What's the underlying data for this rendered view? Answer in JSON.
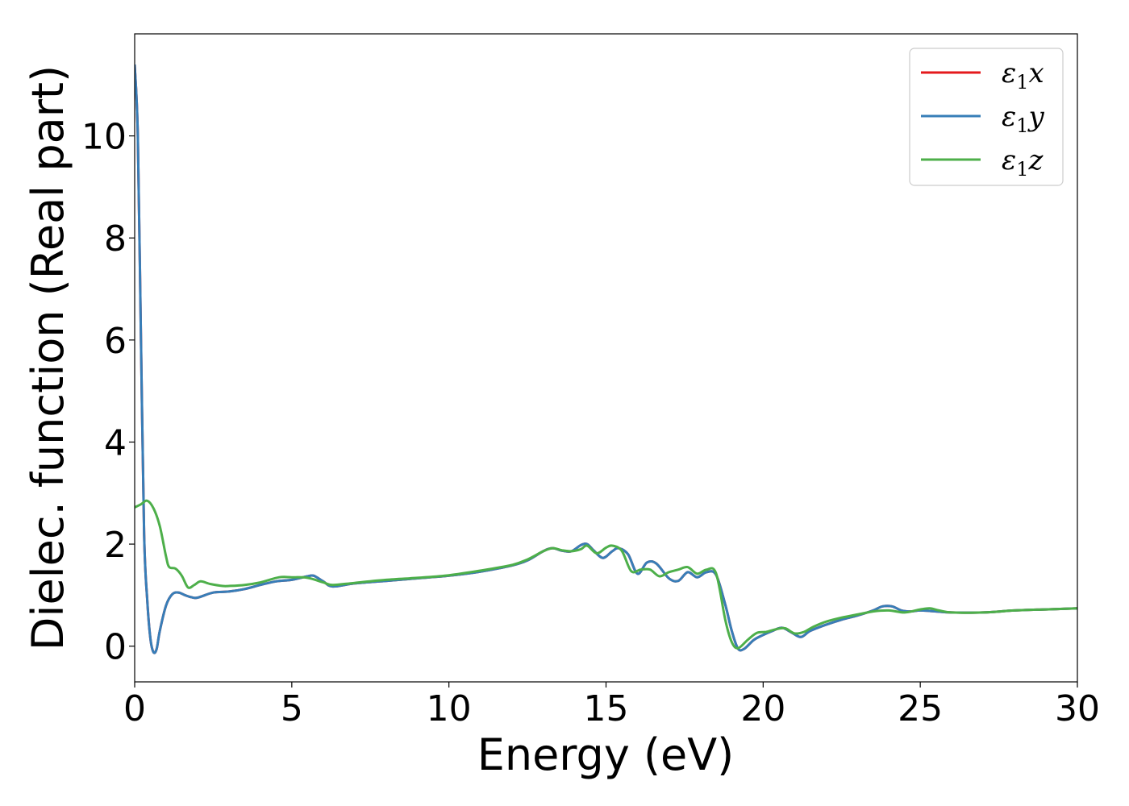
{
  "chart_data": {
    "type": "line",
    "title": "",
    "xlabel": "Energy (eV)",
    "ylabel": "Dielec. function (Real part)",
    "xlim": [
      0,
      30
    ],
    "ylim": [
      -0.7,
      12.0
    ],
    "xticks": [
      0,
      5,
      10,
      15,
      20,
      25,
      30
    ],
    "yticks": [
      0,
      2,
      4,
      6,
      8,
      10
    ],
    "grid": false,
    "legend_position": "top-right",
    "series": [
      {
        "name": "ε₁x",
        "legend_main": "ε",
        "legend_sub": "1",
        "legend_suffix": "x",
        "color": "#e41a1c",
        "x": [
          0,
          0.1,
          0.2,
          0.3,
          0.4,
          0.5,
          0.6,
          0.7,
          0.8,
          1.0,
          1.2,
          1.4,
          1.6,
          1.8,
          2.0,
          2.5,
          3.0,
          3.5,
          4.0,
          4.5,
          5.0,
          5.5,
          5.7,
          6.0,
          6.3,
          7.0,
          8.0,
          9.0,
          10.0,
          11.0,
          12.0,
          12.5,
          13.0,
          13.3,
          13.6,
          13.9,
          14.2,
          14.4,
          14.6,
          14.9,
          15.2,
          15.4,
          15.7,
          16.0,
          16.3,
          16.6,
          17.0,
          17.3,
          17.6,
          17.9,
          18.2,
          18.5,
          18.8,
          19.0,
          19.2,
          19.4,
          19.7,
          20.0,
          20.3,
          20.6,
          20.9,
          21.2,
          21.5,
          22.0,
          22.5,
          23.0,
          23.5,
          23.8,
          24.1,
          24.4,
          24.7,
          25.0,
          25.5,
          26.0,
          27.0,
          28.0,
          29.0,
          30.0
        ],
        "y": [
          11.4,
          10.0,
          6.0,
          2.2,
          0.9,
          0.15,
          -0.12,
          -0.05,
          0.3,
          0.8,
          1.02,
          1.05,
          1.0,
          0.96,
          0.95,
          1.05,
          1.07,
          1.12,
          1.2,
          1.27,
          1.3,
          1.37,
          1.38,
          1.27,
          1.17,
          1.23,
          1.28,
          1.33,
          1.38,
          1.46,
          1.58,
          1.68,
          1.86,
          1.92,
          1.87,
          1.86,
          1.98,
          2.0,
          1.88,
          1.73,
          1.86,
          1.92,
          1.8,
          1.42,
          1.64,
          1.62,
          1.33,
          1.28,
          1.45,
          1.35,
          1.45,
          1.4,
          0.8,
          0.3,
          -0.05,
          -0.05,
          0.12,
          0.22,
          0.3,
          0.36,
          0.27,
          0.18,
          0.3,
          0.42,
          0.52,
          0.6,
          0.7,
          0.78,
          0.78,
          0.7,
          0.68,
          0.7,
          0.68,
          0.66,
          0.66,
          0.7,
          0.72,
          0.74
        ]
      },
      {
        "name": "ε₁y",
        "legend_main": "ε",
        "legend_sub": "1",
        "legend_suffix": "y",
        "color": "#377eb8",
        "x": [
          0,
          0.1,
          0.2,
          0.3,
          0.4,
          0.5,
          0.6,
          0.7,
          0.8,
          1.0,
          1.2,
          1.4,
          1.6,
          1.8,
          2.0,
          2.5,
          3.0,
          3.5,
          4.0,
          4.5,
          5.0,
          5.5,
          5.7,
          6.0,
          6.3,
          7.0,
          8.0,
          9.0,
          10.0,
          11.0,
          12.0,
          12.5,
          13.0,
          13.3,
          13.6,
          13.9,
          14.2,
          14.4,
          14.6,
          14.9,
          15.2,
          15.4,
          15.7,
          16.0,
          16.3,
          16.6,
          17.0,
          17.3,
          17.6,
          17.9,
          18.2,
          18.5,
          18.8,
          19.0,
          19.2,
          19.4,
          19.7,
          20.0,
          20.3,
          20.6,
          20.9,
          21.2,
          21.5,
          22.0,
          22.5,
          23.0,
          23.5,
          23.8,
          24.1,
          24.4,
          24.7,
          25.0,
          25.5,
          26.0,
          27.0,
          28.0,
          29.0,
          30.0
        ],
        "y": [
          11.4,
          10.0,
          6.0,
          2.2,
          0.9,
          0.15,
          -0.12,
          -0.05,
          0.3,
          0.8,
          1.02,
          1.05,
          1.0,
          0.96,
          0.95,
          1.05,
          1.07,
          1.12,
          1.2,
          1.27,
          1.3,
          1.37,
          1.38,
          1.27,
          1.17,
          1.23,
          1.28,
          1.33,
          1.38,
          1.46,
          1.58,
          1.68,
          1.86,
          1.92,
          1.87,
          1.86,
          1.98,
          2.0,
          1.88,
          1.73,
          1.86,
          1.92,
          1.8,
          1.42,
          1.64,
          1.62,
          1.33,
          1.28,
          1.45,
          1.35,
          1.45,
          1.4,
          0.8,
          0.3,
          -0.05,
          -0.05,
          0.12,
          0.22,
          0.3,
          0.36,
          0.27,
          0.18,
          0.3,
          0.42,
          0.52,
          0.6,
          0.7,
          0.78,
          0.78,
          0.7,
          0.68,
          0.7,
          0.68,
          0.66,
          0.66,
          0.7,
          0.72,
          0.74
        ]
      },
      {
        "name": "ε₁z",
        "legend_main": "ε",
        "legend_sub": "1",
        "legend_suffix": "z",
        "color": "#4daf4a",
        "x": [
          0,
          0.2,
          0.4,
          0.6,
          0.8,
          1.0,
          1.1,
          1.3,
          1.5,
          1.7,
          1.9,
          2.1,
          2.4,
          2.8,
          3.0,
          3.5,
          4.0,
          4.6,
          5.0,
          5.5,
          6.0,
          6.3,
          7.0,
          8.0,
          9.0,
          10.0,
          11.0,
          12.0,
          12.5,
          13.0,
          13.3,
          13.6,
          13.9,
          14.2,
          14.4,
          14.7,
          15.0,
          15.2,
          15.5,
          15.8,
          16.1,
          16.4,
          16.7,
          17.0,
          17.3,
          17.6,
          17.9,
          18.2,
          18.5,
          18.8,
          19.0,
          19.2,
          19.5,
          19.8,
          20.1,
          20.4,
          20.7,
          21.0,
          21.3,
          21.6,
          22.0,
          22.5,
          23.0,
          23.5,
          24.0,
          24.5,
          25.0,
          25.3,
          25.6,
          26.0,
          27.0,
          28.0,
          29.0,
          30.0
        ],
        "y": [
          2.72,
          2.78,
          2.85,
          2.7,
          2.35,
          1.75,
          1.55,
          1.52,
          1.38,
          1.15,
          1.2,
          1.27,
          1.22,
          1.18,
          1.18,
          1.2,
          1.25,
          1.35,
          1.35,
          1.34,
          1.25,
          1.2,
          1.24,
          1.3,
          1.34,
          1.39,
          1.48,
          1.59,
          1.7,
          1.86,
          1.92,
          1.88,
          1.86,
          1.9,
          1.97,
          1.82,
          1.93,
          1.97,
          1.87,
          1.47,
          1.5,
          1.5,
          1.37,
          1.45,
          1.5,
          1.55,
          1.42,
          1.5,
          1.43,
          0.5,
          0.08,
          -0.04,
          0.12,
          0.26,
          0.28,
          0.33,
          0.35,
          0.25,
          0.28,
          0.38,
          0.48,
          0.56,
          0.62,
          0.68,
          0.7,
          0.66,
          0.72,
          0.74,
          0.7,
          0.66,
          0.66,
          0.7,
          0.72,
          0.74
        ]
      }
    ]
  }
}
